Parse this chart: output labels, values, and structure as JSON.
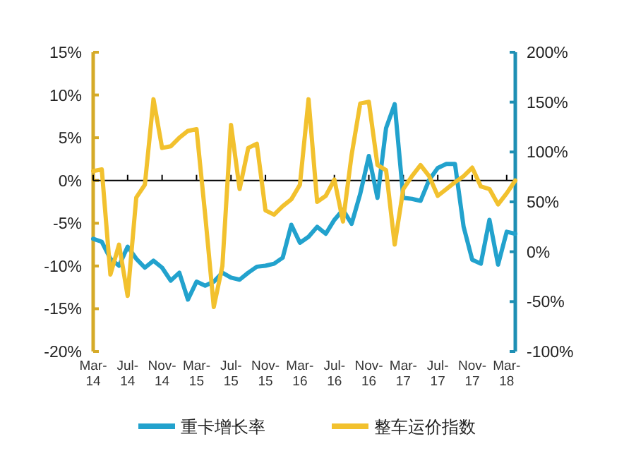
{
  "chart_data": {
    "type": "line",
    "categories": [
      "Mar-\n14",
      null,
      null,
      null,
      "Jul-\n14",
      null,
      null,
      null,
      "Nov-\n14",
      null,
      null,
      null,
      "Mar-\n15",
      null,
      null,
      null,
      "Jul-\n15",
      null,
      null,
      null,
      "Nov-\n15",
      null,
      null,
      null,
      "Mar-\n16",
      null,
      null,
      null,
      "Jul-\n16",
      null,
      null,
      null,
      "Nov-\n16",
      null,
      null,
      null,
      "Mar-\n17",
      null,
      null,
      null,
      "Jul-\n17",
      null,
      null,
      null,
      "Nov-\n17",
      null,
      null,
      null,
      "Mar-\n18",
      null
    ],
    "series": [
      {
        "name": "重卡增长率",
        "color": "#22a2cd",
        "axis": "y2",
        "values": [
          13,
          10,
          -7,
          -14,
          5,
          -7,
          -16,
          -9,
          -16,
          -29,
          -21,
          -48,
          -30,
          -34,
          -30,
          -21,
          -26,
          -28,
          -21,
          -15,
          -14,
          -12,
          -6,
          27,
          9,
          15,
          25,
          18,
          32,
          42,
          28,
          58,
          96,
          54,
          124,
          148,
          54,
          53,
          51,
          72,
          84,
          88,
          88,
          25,
          -8,
          -12,
          32,
          -13,
          20,
          18
        ]
      },
      {
        "name": "整车运价指数",
        "color": "#f2c12e",
        "values": [
          1.1,
          1.3,
          -11,
          -7.5,
          -13.5,
          -2,
          -0.5,
          9.5,
          3.8,
          4,
          5,
          5.8,
          6,
          -4,
          -14.8,
          -10,
          6.5,
          -1,
          3.8,
          4.3,
          -3.5,
          -4,
          -3,
          -2.2,
          -0.5,
          9.5,
          -2.5,
          -1.8,
          0.1,
          -4.8,
          3,
          9,
          9.2,
          1.8,
          1.2,
          -7.5,
          -1,
          0.5,
          1.8,
          0.5,
          -1.8,
          -1,
          -0.2,
          0.5,
          1.5,
          -0.7,
          -1,
          -2.8,
          -1.5,
          0
        ]
      }
    ],
    "ylim": [
      -20,
      15
    ],
    "yticks": [
      {
        "value": -20,
        "label": "-20%"
      },
      {
        "value": -15,
        "label": "-15%"
      },
      {
        "value": -10,
        "label": "-10%"
      },
      {
        "value": -5,
        "label": "-5%"
      },
      {
        "value": 0,
        "label": "0%"
      },
      {
        "value": 5,
        "label": "5%"
      },
      {
        "value": 10,
        "label": "10%"
      },
      {
        "value": 15,
        "label": "15%"
      }
    ],
    "y2lim": [
      -100,
      200
    ],
    "y2ticks": [
      {
        "value": -100,
        "label": "-100%"
      },
      {
        "value": -50,
        "label": "-50%"
      },
      {
        "value": 0,
        "label": "0%"
      },
      {
        "value": 50,
        "label": "50%"
      },
      {
        "value": 100,
        "label": "100%"
      },
      {
        "value": 150,
        "label": "150%"
      },
      {
        "value": 200,
        "label": "200%"
      }
    ],
    "legend": "bottom",
    "marker": "none",
    "line_style": "solid"
  }
}
